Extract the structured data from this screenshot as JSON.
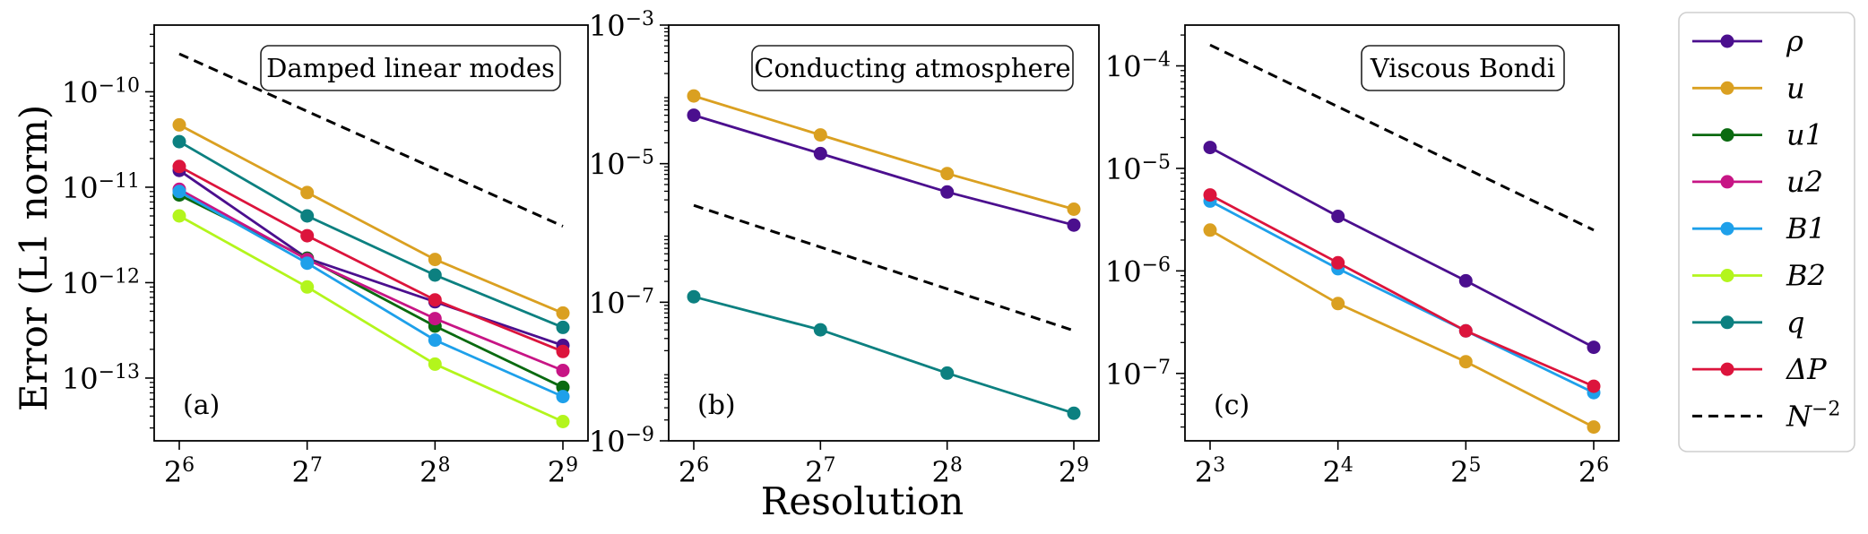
{
  "figure": {
    "ylabel": "Error (L1 norm)",
    "xlabel": "Resolution"
  },
  "legend": [
    {
      "key": "rho",
      "label": "ρ",
      "color": "#4b0f8e"
    },
    {
      "key": "u",
      "label": "u",
      "color": "#daa021"
    },
    {
      "key": "u1",
      "label": "u1",
      "color": "#0a6a10"
    },
    {
      "key": "u2",
      "label": "u2",
      "color": "#c71585"
    },
    {
      "key": "B1",
      "label": "B1",
      "color": "#1ea0ea"
    },
    {
      "key": "B2",
      "label": "B2",
      "color": "#b3f51c"
    },
    {
      "key": "q",
      "label": "q",
      "color": "#0c8080"
    },
    {
      "key": "dP",
      "label": "ΔP",
      "color": "#dc143c"
    },
    {
      "key": "ref",
      "label": "N",
      "sup": "−2",
      "color": "#000000",
      "dashed": true
    }
  ],
  "chart_data": [
    {
      "type": "line",
      "title": "Damped linear modes",
      "panel_label": "(a)",
      "log_x": true,
      "log_y": true,
      "x": [
        64,
        128,
        256,
        512
      ],
      "x_ticks": [
        {
          "base": "2",
          "exp": "6"
        },
        {
          "base": "2",
          "exp": "7"
        },
        {
          "base": "2",
          "exp": "8"
        },
        {
          "base": "2",
          "exp": "9"
        }
      ],
      "ylim": [
        2.2e-14,
        5e-10
      ],
      "y_ticks": [
        {
          "base": "10",
          "exp": "−13",
          "value": 1e-13
        },
        {
          "base": "10",
          "exp": "−12",
          "value": 1e-12
        },
        {
          "base": "10",
          "exp": "−11",
          "value": 1e-11
        },
        {
          "base": "10",
          "exp": "−10",
          "value": 1e-10
        }
      ],
      "series": [
        {
          "key": "rho",
          "values": [
            1.5e-11,
            1.8e-12,
            6.3e-13,
            2.2e-13
          ]
        },
        {
          "key": "u",
          "values": [
            4.5e-11,
            8.8e-12,
            1.75e-12,
            4.8e-13
          ]
        },
        {
          "key": "u1",
          "values": [
            8.3e-12,
            1.8e-12,
            3.5e-13,
            8e-14
          ]
        },
        {
          "key": "u2",
          "values": [
            9.5e-12,
            1.75e-12,
            4.2e-13,
            1.2e-13
          ]
        },
        {
          "key": "B1",
          "values": [
            9e-12,
            1.6e-12,
            2.5e-13,
            6.4e-14
          ]
        },
        {
          "key": "B2",
          "values": [
            5e-12,
            9e-13,
            1.4e-13,
            3.5e-14
          ]
        },
        {
          "key": "q",
          "values": [
            3e-11,
            5e-12,
            1.2e-12,
            3.4e-13
          ]
        },
        {
          "key": "dP",
          "values": [
            1.65e-11,
            3.1e-12,
            6.6e-13,
            1.9e-13
          ]
        },
        {
          "key": "ref",
          "values": [
            2.5e-10,
            6.25e-11,
            1.56e-11,
            3.9e-12
          ]
        }
      ]
    },
    {
      "type": "line",
      "title": "Conducting atmosphere",
      "panel_label": "(b)",
      "log_x": true,
      "log_y": true,
      "x": [
        64,
        128,
        256,
        512
      ],
      "x_ticks": [
        {
          "base": "2",
          "exp": "6"
        },
        {
          "base": "2",
          "exp": "7"
        },
        {
          "base": "2",
          "exp": "8"
        },
        {
          "base": "2",
          "exp": "9"
        }
      ],
      "ylim": [
        1e-09,
        0.001
      ],
      "y_ticks": [
        {
          "base": "10",
          "exp": "−9",
          "value": 1e-09
        },
        {
          "base": "10",
          "exp": "−7",
          "value": 1e-07
        },
        {
          "base": "10",
          "exp": "−5",
          "value": 1e-05
        },
        {
          "base": "10",
          "exp": "−3",
          "value": 0.001
        }
      ],
      "series": [
        {
          "key": "rho",
          "values": [
            5e-05,
            1.4e-05,
            3.9e-06,
            1.3e-06
          ]
        },
        {
          "key": "u",
          "values": [
            9.5e-05,
            2.6e-05,
            7.2e-06,
            2.2e-06
          ]
        },
        {
          "key": "q",
          "values": [
            1.2e-07,
            4e-08,
            9.5e-09,
            2.5e-09
          ]
        },
        {
          "key": "ref",
          "values": [
            2.5e-06,
            6.25e-07,
            1.56e-07,
            3.9e-08
          ]
        }
      ]
    },
    {
      "type": "line",
      "title": "Viscous Bondi",
      "panel_label": "(c)",
      "log_x": true,
      "log_y": true,
      "x": [
        8,
        16,
        32,
        64
      ],
      "x_ticks": [
        {
          "base": "2",
          "exp": "3"
        },
        {
          "base": "2",
          "exp": "4"
        },
        {
          "base": "2",
          "exp": "5"
        },
        {
          "base": "2",
          "exp": "6"
        }
      ],
      "ylim": [
        2.2e-08,
        0.00025
      ],
      "y_ticks": [
        {
          "base": "10",
          "exp": "−7",
          "value": 1e-07
        },
        {
          "base": "10",
          "exp": "−6",
          "value": 1e-06
        },
        {
          "base": "10",
          "exp": "−5",
          "value": 1e-05
        },
        {
          "base": "10",
          "exp": "−4",
          "value": 0.0001
        }
      ],
      "series": [
        {
          "key": "rho",
          "values": [
            1.6e-05,
            3.4e-06,
            8e-07,
            1.8e-07
          ]
        },
        {
          "key": "u",
          "values": [
            2.5e-06,
            4.8e-07,
            1.3e-07,
            3e-08
          ]
        },
        {
          "key": "B1",
          "values": [
            4.8e-06,
            1.05e-06,
            2.6e-07,
            6.5e-08
          ]
        },
        {
          "key": "dP",
          "values": [
            5.5e-06,
            1.2e-06,
            2.6e-07,
            7.5e-08
          ]
        },
        {
          "key": "ref",
          "values": [
            0.00016,
            4e-05,
            1e-05,
            2.5e-06
          ]
        }
      ]
    }
  ]
}
